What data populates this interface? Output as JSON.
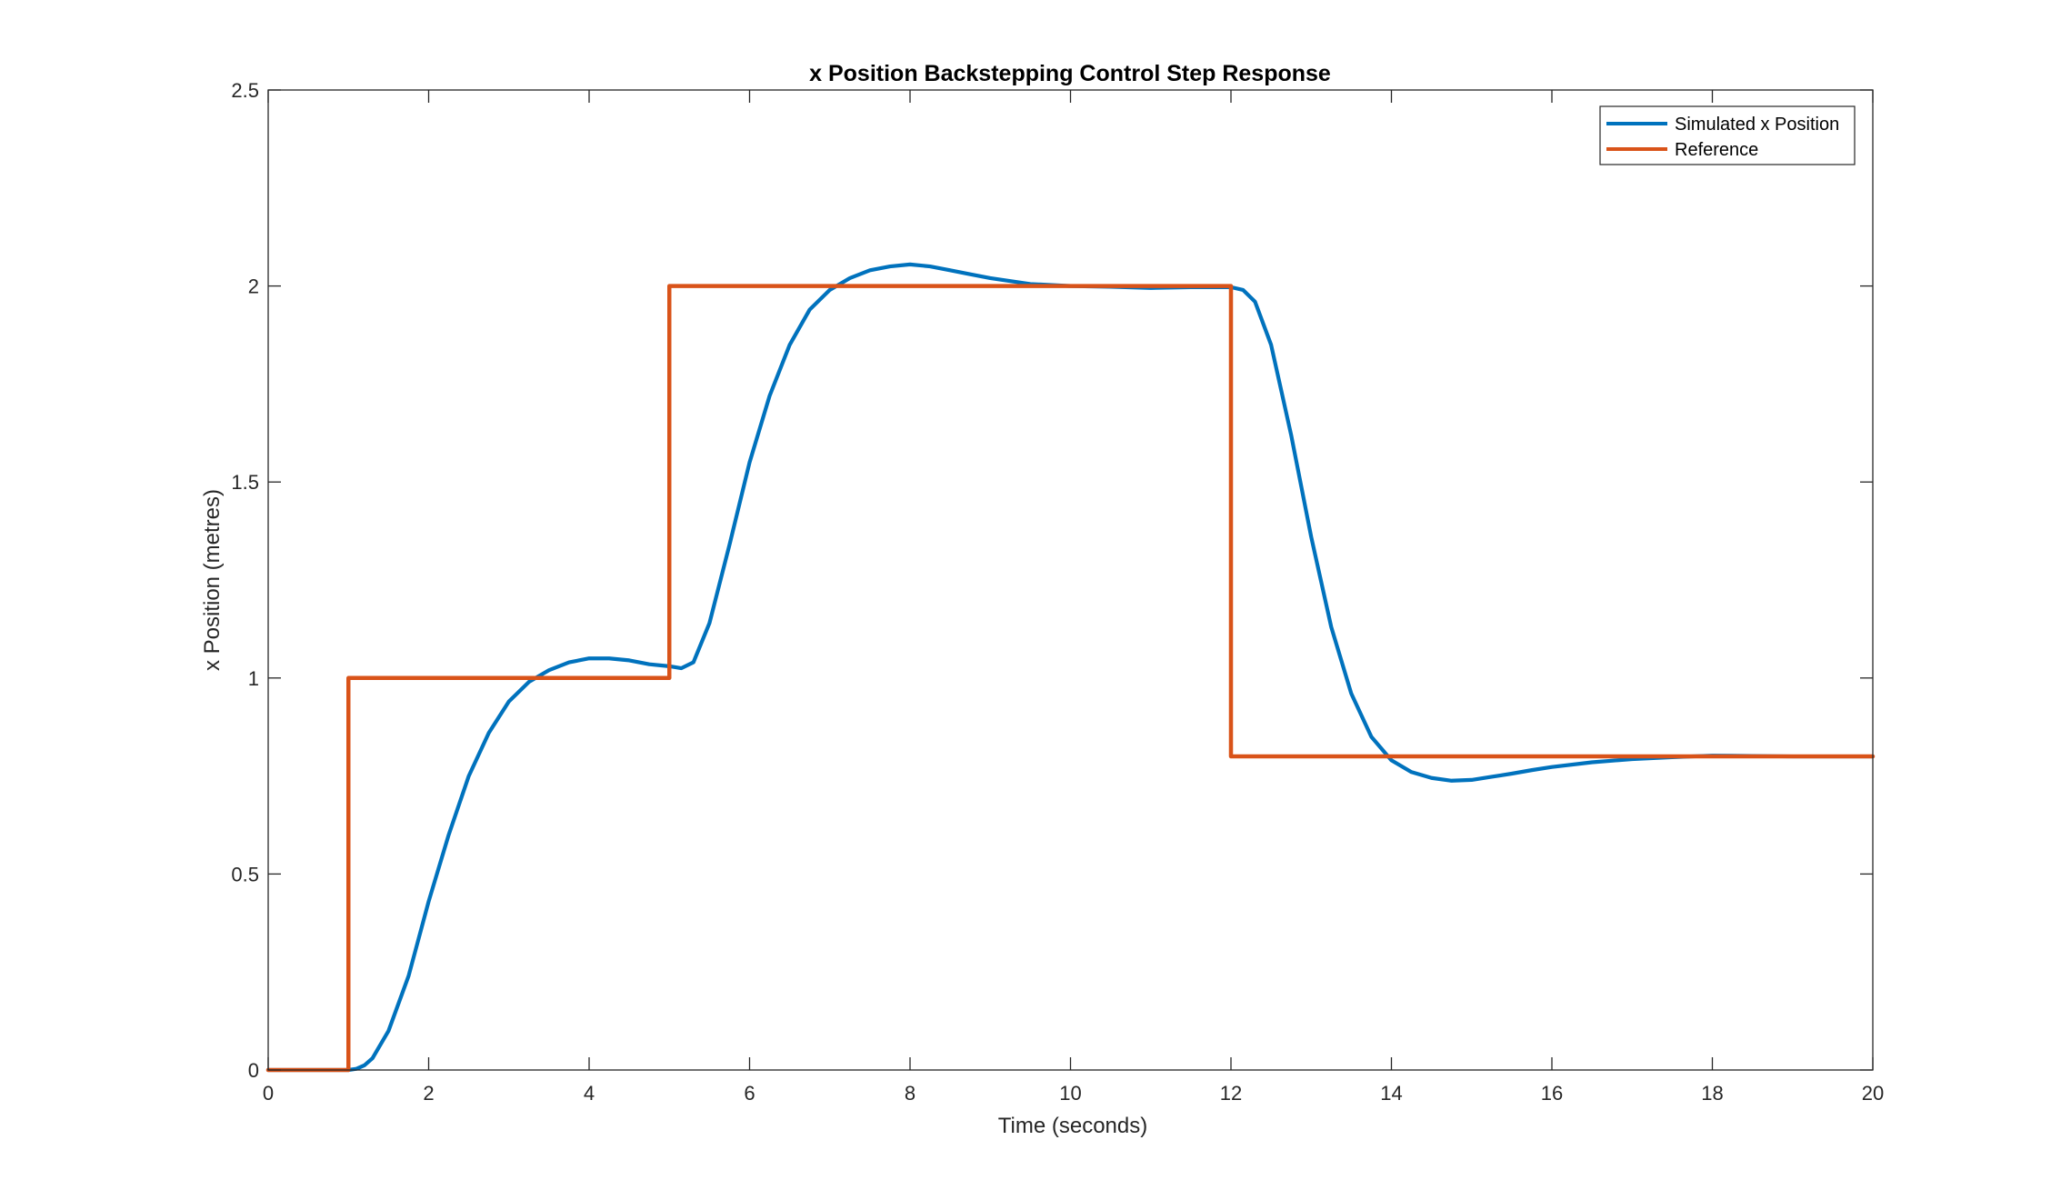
{
  "chart_data": {
    "type": "line",
    "title": "x Position Backstepping Control Step Response",
    "xlabel": "Time (seconds)",
    "ylabel": "x Position (metres)",
    "xlim": [
      0,
      20
    ],
    "ylim": [
      0,
      2.5
    ],
    "xticks": [
      0,
      2,
      4,
      6,
      8,
      10,
      12,
      14,
      16,
      18,
      20
    ],
    "yticks": [
      0,
      0.5,
      1,
      1.5,
      2,
      2.5
    ],
    "xtick_labels": [
      "0",
      "2",
      "4",
      "6",
      "8",
      "10",
      "12",
      "14",
      "16",
      "18",
      "20"
    ],
    "ytick_labels": [
      "0",
      "0.5",
      "1",
      "1.5",
      "2",
      "2.5"
    ],
    "grid": false,
    "legend_position": "top-right",
    "series": [
      {
        "name": "Simulated x Position",
        "color": "#0072BD",
        "x": [
          0,
          1.0,
          1.1,
          1.2,
          1.3,
          1.5,
          1.75,
          2.0,
          2.25,
          2.5,
          2.75,
          3.0,
          3.25,
          3.5,
          3.75,
          4.0,
          4.25,
          4.5,
          4.75,
          5.0,
          5.15,
          5.3,
          5.5,
          5.75,
          6.0,
          6.25,
          6.5,
          6.75,
          7.0,
          7.25,
          7.5,
          7.75,
          8.0,
          8.25,
          8.5,
          8.75,
          9.0,
          9.5,
          10.0,
          10.5,
          11.0,
          11.5,
          12.0,
          12.15,
          12.3,
          12.5,
          12.75,
          13.0,
          13.25,
          13.5,
          13.75,
          14.0,
          14.25,
          14.5,
          14.75,
          15.0,
          15.25,
          15.5,
          15.75,
          16.0,
          16.5,
          17.0,
          17.5,
          18.0,
          18.5,
          19.0,
          19.5,
          20.0
        ],
        "y": [
          0,
          0,
          0.003,
          0.012,
          0.03,
          0.1,
          0.24,
          0.43,
          0.6,
          0.75,
          0.86,
          0.94,
          0.99,
          1.02,
          1.04,
          1.05,
          1.05,
          1.045,
          1.035,
          1.03,
          1.025,
          1.04,
          1.14,
          1.34,
          1.55,
          1.72,
          1.85,
          1.94,
          1.99,
          2.02,
          2.04,
          2.05,
          2.055,
          2.05,
          2.04,
          2.03,
          2.02,
          2.005,
          2.0,
          1.998,
          1.995,
          1.997,
          1.997,
          1.99,
          1.96,
          1.85,
          1.62,
          1.36,
          1.13,
          0.96,
          0.85,
          0.79,
          0.76,
          0.745,
          0.738,
          0.74,
          0.748,
          0.756,
          0.765,
          0.773,
          0.785,
          0.793,
          0.798,
          0.802,
          0.801,
          0.8,
          0.8,
          0.8
        ]
      },
      {
        "name": "Reference",
        "color": "#D95319",
        "x": [
          0,
          1,
          1,
          5,
          5,
          12,
          12,
          20
        ],
        "y": [
          0,
          0,
          1,
          1,
          2,
          2,
          0.8,
          0.8
        ]
      }
    ]
  }
}
